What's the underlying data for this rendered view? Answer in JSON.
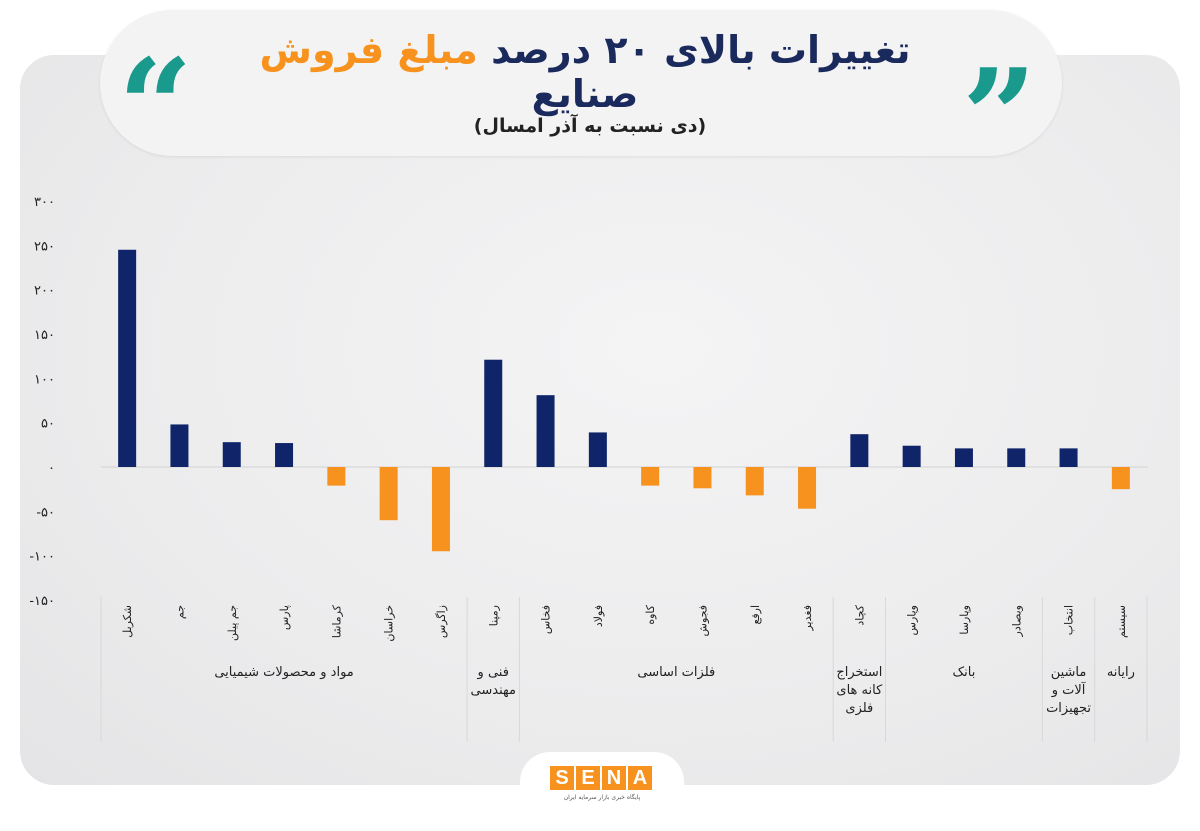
{
  "header": {
    "title_part1": "تغییرات بالای ۲۰ درصد",
    "title_accent": "مبلغ فروش",
    "title_part2": "صنایع",
    "subtitle": "(دی نسبت به آذر امسال)"
  },
  "logo": {
    "letters": [
      "S",
      "E",
      "N",
      "A"
    ],
    "tagline": "پایگاه خبری بازار سرمایه ایران"
  },
  "colors": {
    "positive": "#0f2469",
    "negative": "#f7921e",
    "axis_text": "#222222",
    "grid": "#d8d8d8",
    "quote": "#1a9a8c",
    "title": "#1b2a5c"
  },
  "chart_data": {
    "type": "bar",
    "title": "تغییرات بالای ۲۰ درصد مبلغ فروش صنایع",
    "subtitle": "(دی نسبت به آذر امسال)",
    "ylim": [
      -150,
      300
    ],
    "yticks": [
      {
        "v": 300,
        "label": "۳۰۰"
      },
      {
        "v": 250,
        "label": "۲۵۰"
      },
      {
        "v": 200,
        "label": "۲۰۰"
      },
      {
        "v": 150,
        "label": "۱۵۰"
      },
      {
        "v": 100,
        "label": "۱۰۰"
      },
      {
        "v": 50,
        "label": "۵۰"
      },
      {
        "v": 0,
        "label": "۰"
      },
      {
        "v": -50,
        "label": "-۵۰"
      },
      {
        "v": -100,
        "label": "-۱۰۰"
      },
      {
        "v": -150,
        "label": "-۱۵۰"
      }
    ],
    "categories": [
      "شکربل",
      "جم",
      "جم پیلن",
      "پارس",
      "کرماشا",
      "خراسان",
      "زاگرس",
      "رمپنا",
      "فخاس",
      "فولاد",
      "کاوه",
      "فجوش",
      "ارفع",
      "فغدیر",
      "کچاد",
      "وپارس",
      "وپارسا",
      "وبصادر",
      "انتخاب",
      "سیستم"
    ],
    "values": [
      245,
      48,
      28,
      27,
      -21,
      -60,
      -95,
      121,
      81,
      39,
      -21,
      -24,
      -32,
      -47,
      37,
      24,
      21,
      21,
      21,
      -25
    ],
    "groups": [
      {
        "label_lines": [
          "مواد و محصولات شیمیایی"
        ],
        "count": 7
      },
      {
        "label_lines": [
          "فنی و",
          "مهندسی"
        ],
        "count": 1
      },
      {
        "label_lines": [
          "فلزات اساسی"
        ],
        "count": 6
      },
      {
        "label_lines": [
          "استخراج",
          "کانه های",
          "فلزی"
        ],
        "count": 1
      },
      {
        "label_lines": [
          "بانک"
        ],
        "count": 3
      },
      {
        "label_lines": [
          "ماشین",
          "آلات و",
          "تجهیزات"
        ],
        "count": 1
      },
      {
        "label_lines": [
          "رایانه"
        ],
        "count": 1
      }
    ]
  }
}
